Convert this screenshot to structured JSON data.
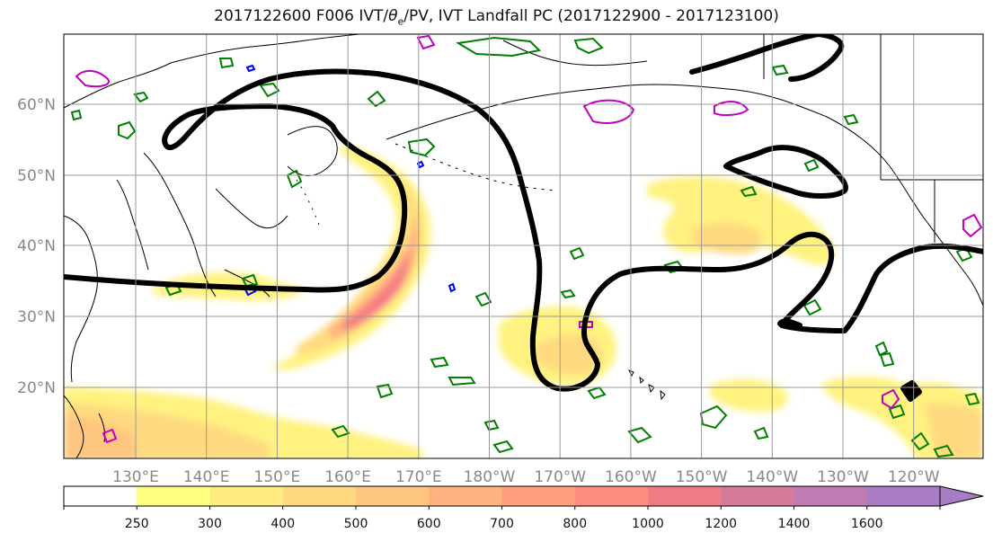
{
  "title": {
    "prefix": "2017122600 F006 IVT/",
    "theta": "θ",
    "sub": "e",
    "suffix": "/PV, IVT Landfall PC (2017122900 - 2017123100)"
  },
  "chart_data": {
    "type": "heatmap",
    "title": "2017122600 F006 IVT/θe/PV, IVT Landfall PC (2017122900 - 2017123100)",
    "lat_ticks": [
      "20°N",
      "30°N",
      "40°N",
      "50°N",
      "60°N"
    ],
    "lon_ticks": [
      "130°E",
      "140°E",
      "150°E",
      "160°E",
      "170°E",
      "180°W",
      "170°W",
      "160°W",
      "150°W",
      "140°W",
      "130°W",
      "120°W"
    ],
    "lat_range": [
      10,
      70
    ],
    "lon_range": [
      120,
      250
    ],
    "grid": true,
    "colorbar": {
      "labels": [
        "250",
        "300",
        "400",
        "500",
        "600",
        "700",
        "800",
        "1000",
        "1200",
        "1400",
        "1600"
      ],
      "colors": [
        "#ffffff",
        "#ffff80",
        "#ffec80",
        "#ffd980",
        "#ffc680",
        "#ffb280",
        "#ff9f80",
        "#ff8c80",
        "#f07d85",
        "#d67a99",
        "#bf7db3",
        "#a97dc6"
      ],
      "extend": "max"
    },
    "contour_colors": {
      "pc": "#000000",
      "theta_e": "#008000",
      "pv_pos": "#c000c0",
      "pv_neg": "#0000ff"
    }
  }
}
